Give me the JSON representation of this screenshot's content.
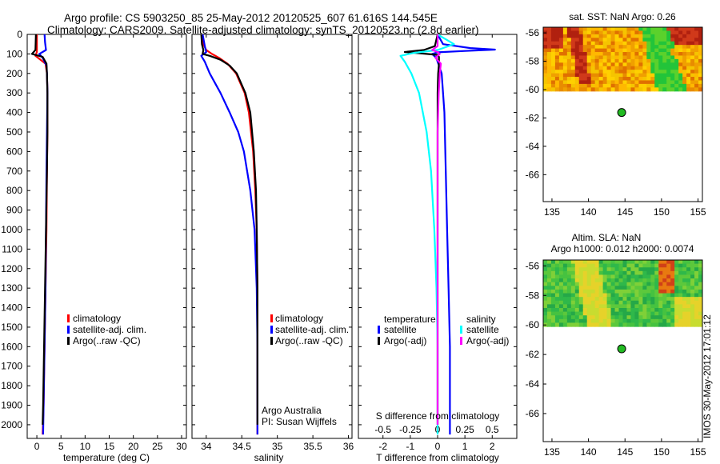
{
  "header": {
    "line1": "Argo profile: CS 5903250_85 25-May-2012 20120525_607 61.616S 144.545E",
    "line2": "Climatology: CARS2009. Satellite-adjusted climatology: synTS_20120523.nc (2.8d earlier)"
  },
  "colors": {
    "climatology": "#ff0000",
    "satellite": "#0000ff",
    "argo": "#000000",
    "satellite_s": "#00ffff",
    "argo_s": "#ff00ff",
    "float_marker": "#22bb22"
  },
  "depth_ticks": [
    "0",
    "100",
    "200",
    "300",
    "400",
    "500",
    "600",
    "700",
    "800",
    "900",
    "1000",
    "1100",
    "1200",
    "1300",
    "1400",
    "1500",
    "1600",
    "1700",
    "1800",
    "1900",
    "2000"
  ],
  "chart_data": [
    {
      "id": "temperature",
      "type": "line",
      "xlabel": "temperature (deg C)",
      "ylabel": "",
      "xlim": [
        -2,
        31
      ],
      "ylim": [
        2070,
        0
      ],
      "xticks": [
        "0",
        "5",
        "10",
        "15",
        "20",
        "25",
        "30"
      ],
      "legend": [
        "climatology",
        "satellite-adj. clim.",
        "Argo(..raw -QC)"
      ],
      "legend_position": "lower-middle",
      "series": [
        {
          "name": "climatology",
          "color": "#ff0000",
          "depth": [
            0,
            60,
            90,
            110,
            150,
            200,
            300,
            500,
            700,
            1000,
            1300,
            1600,
            1900,
            2050
          ],
          "values": [
            0.0,
            0.0,
            0.0,
            -0.3,
            1.8,
            2.1,
            2.2,
            2.2,
            2.1,
            2.0,
            1.8,
            1.6,
            1.4,
            1.2
          ]
        },
        {
          "name": "satellite-adj. clim.",
          "color": "#0000ff",
          "depth": [
            0,
            40,
            80,
            100,
            120,
            160,
            200,
            300,
            500,
            700,
            1000,
            1300,
            1600,
            1900,
            2050
          ],
          "values": [
            1.6,
            1.7,
            1.9,
            0.5,
            1.2,
            2.0,
            2.1,
            2.2,
            2.1,
            2.0,
            1.9,
            1.8,
            1.6,
            1.4,
            1.3
          ]
        },
        {
          "name": "Argo(..raw -QC)",
          "color": "#000000",
          "depth": [
            0,
            80,
            100,
            115,
            150,
            200,
            300,
            500,
            700,
            1000,
            1300,
            1600,
            1900,
            2000
          ],
          "values": [
            -0.2,
            -0.3,
            -1.0,
            1.2,
            2.0,
            2.1,
            2.2,
            2.2,
            2.1,
            1.9,
            1.7,
            1.5,
            1.3,
            1.2
          ]
        }
      ]
    },
    {
      "id": "salinity",
      "type": "line",
      "xlabel": "salinity",
      "ylabel": "",
      "xlim": [
        33.8,
        36.05
      ],
      "ylim": [
        2070,
        0
      ],
      "xticks": [
        "34",
        "34.5",
        "35",
        "35.5",
        "36"
      ],
      "legend": [
        "climatology",
        "satellite-adj. clim.",
        "Argo(..raw -QC)"
      ],
      "legend_position": "lower-middle",
      "annotation": [
        "Argo Australia",
        "PI: Susan Wijffels"
      ],
      "series": [
        {
          "name": "climatology",
          "color": "#ff0000",
          "depth": [
            0,
            50,
            80,
            100,
            120,
            150,
            200,
            300,
            400,
            600,
            800,
            1000,
            1300,
            1600,
            1900,
            2050
          ],
          "values": [
            33.95,
            33.96,
            34.0,
            34.08,
            34.18,
            34.3,
            34.42,
            34.54,
            34.6,
            34.66,
            34.69,
            34.71,
            34.72,
            34.72,
            34.72,
            34.72
          ]
        },
        {
          "name": "satellite-adj. clim.",
          "color": "#0000ff",
          "depth": [
            0,
            60,
            90,
            110,
            140,
            200,
            300,
            400,
            500,
            600,
            800,
            1000,
            1300,
            1600,
            1900,
            2050
          ],
          "values": [
            33.95,
            33.98,
            34.0,
            33.93,
            33.98,
            34.05,
            34.2,
            34.33,
            34.45,
            34.53,
            34.62,
            34.68,
            34.71,
            34.72,
            34.72,
            34.72
          ]
        },
        {
          "name": "Argo(..raw -QC)",
          "color": "#000000",
          "depth": [
            0,
            50,
            80,
            100,
            110,
            130,
            160,
            200,
            300,
            400,
            600,
            800,
            1000,
            1300,
            1600,
            1900,
            2000
          ],
          "values": [
            33.93,
            33.94,
            33.96,
            33.95,
            34.05,
            34.2,
            34.33,
            34.43,
            34.55,
            34.62,
            34.67,
            34.7,
            34.71,
            34.72,
            34.72,
            34.72,
            34.72
          ]
        }
      ]
    },
    {
      "id": "differences",
      "type": "line",
      "xlabel": "T difference from climatology",
      "top_axis_label": "S difference from climatology",
      "ylabel": "",
      "xlim": [
        -2.9,
        2.9
      ],
      "ylim": [
        2070,
        0
      ],
      "xticks": [
        "-2",
        "-1",
        "0",
        "1",
        "2"
      ],
      "sticks": [
        "-0.5",
        "-0.25",
        "0",
        "0.25",
        "0.5"
      ],
      "legend": [
        "temperature",
        "satellite",
        "Argo(-adj)",
        "salinity",
        "satellite",
        "Argo(-adj)"
      ],
      "legend_position": "lower-middle",
      "series": [
        {
          "name": "satellite",
          "group": "temperature",
          "color": "#0000ff",
          "depth": [
            0,
            50,
            70,
            78,
            85,
            92,
            100,
            120,
            160,
            200,
            400,
            700,
            1000,
            1300,
            1600,
            1900,
            2050
          ],
          "values": [
            0.0,
            0.2,
            1.2,
            2.1,
            1.0,
            0.0,
            -0.2,
            -0.05,
            0.05,
            0.15,
            0.25,
            0.3,
            0.35,
            0.4,
            0.45,
            0.45,
            0.45
          ]
        },
        {
          "name": "Argo(-adj)",
          "group": "temperature",
          "color": "#000000",
          "depth": [
            0,
            60,
            80,
            90,
            100,
            105,
            115,
            150,
            200,
            300,
            500,
            800,
            1100,
            1400,
            1700,
            2000
          ],
          "values": [
            0.0,
            -0.1,
            -0.5,
            -1.2,
            -0.4,
            0.0,
            0.05,
            0.05,
            0.02,
            0.0,
            0.0,
            0.0,
            0.0,
            0.0,
            0.0,
            0.0
          ]
        },
        {
          "name": "satellite",
          "group": "salinity",
          "color": "#00ffff",
          "depth": [
            0,
            50,
            70,
            80,
            95,
            110,
            140,
            200,
            300,
            500,
            700,
            1000,
            1300,
            1600,
            1900,
            2050
          ],
          "values": [
            0.0,
            0.15,
            0.05,
            0.0,
            -0.22,
            -0.34,
            -0.3,
            -0.24,
            -0.17,
            -0.1,
            -0.06,
            -0.03,
            -0.01,
            0.0,
            0.0,
            0.0
          ]
        },
        {
          "name": "Argo(-adj)",
          "group": "salinity",
          "color": "#ff00ff",
          "depth": [
            0,
            60,
            80,
            90,
            100,
            120,
            150,
            200,
            300,
            500,
            800,
            1100,
            1400,
            1700,
            2000
          ],
          "values": [
            0.0,
            0.0,
            -0.05,
            0.0,
            0.02,
            -0.02,
            0.03,
            0.02,
            0.01,
            0.0,
            0.0,
            0.0,
            0.0,
            0.0,
            0.0
          ]
        }
      ]
    },
    {
      "id": "sst_map",
      "type": "heatmap",
      "title": "sat. SST: NaN Argo: 0.26",
      "xlim": [
        133.8,
        155.6
      ],
      "ylim": [
        -67.9,
        -55.6
      ],
      "xticks": [
        "135",
        "140",
        "145",
        "150",
        "155"
      ],
      "yticks": [
        "-56",
        "-58",
        "-60",
        "-62",
        "-64",
        "-66"
      ],
      "data_extent_lat": [
        -60.1,
        -55.6
      ],
      "float_position": {
        "lon": 144.545,
        "lat": -61.616
      }
    },
    {
      "id": "sla_map",
      "type": "heatmap",
      "title": [
        "Altim. SLA: NaN",
        "Argo h1000: 0.012 h2000: 0.0074"
      ],
      "xlim": [
        133.8,
        155.6
      ],
      "ylim": [
        -67.9,
        -55.6
      ],
      "xticks": [
        "135",
        "140",
        "145",
        "150",
        "155"
      ],
      "yticks": [
        "-56",
        "-58",
        "-60",
        "-62",
        "-64",
        "-66"
      ],
      "data_extent_lat": [
        -60.1,
        -55.6
      ],
      "float_position": {
        "lon": 144.545,
        "lat": -61.616
      }
    }
  ],
  "stamp": "IMOS 30-May-2012 17:01:12"
}
